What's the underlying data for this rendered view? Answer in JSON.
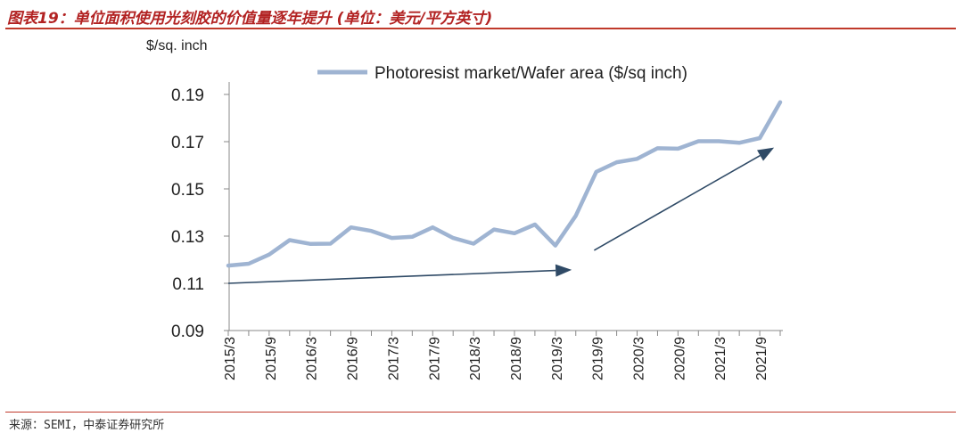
{
  "figure": {
    "title": "图表19：单位面积使用光刻胶的价值量逐年提升 (单位：美元/平方英寸)",
    "source": "来源：SEMI，中泰证券研究所",
    "line_color": "#9fb4d2",
    "arrow_color": "#2f4a66",
    "title_color": "#b22222"
  },
  "chart_data": {
    "type": "line",
    "ylabel": "$/sq. inch",
    "ylim": [
      0.09,
      0.19
    ],
    "yticks": [
      0.09,
      0.11,
      0.13,
      0.15,
      0.17,
      0.19
    ],
    "ytick_labels": [
      "0.09",
      "0.11",
      "0.13",
      "0.15",
      "0.17",
      "0.19"
    ],
    "xtick_labels": [
      "2015/3",
      "2015/9",
      "2016/3",
      "2016/9",
      "2017/3",
      "2017/9",
      "2018/3",
      "2018/9",
      "2019/3",
      "2019/9",
      "2020/3",
      "2020/9",
      "2021/3",
      "2021/9"
    ],
    "legend": "top-center",
    "grid": false,
    "series": [
      {
        "name": "Photoresist market/Wafer area ($/sq inch)",
        "values": [
          0.1175,
          0.1183,
          0.1222,
          0.1283,
          0.1267,
          0.1268,
          0.1337,
          0.1322,
          0.1292,
          0.1297,
          0.1337,
          0.1292,
          0.1268,
          0.1328,
          0.1312,
          0.1349,
          0.126,
          0.1386,
          0.1572,
          0.1613,
          0.1627,
          0.1672,
          0.167,
          0.1702,
          0.1702,
          0.1695,
          0.1715,
          0.1867
        ]
      }
    ],
    "trend_arrows": [
      {
        "from": [
          0.0,
          0.11
        ],
        "to": [
          16.8,
          0.1157
        ]
      },
      {
        "from": [
          17.9,
          0.124
        ],
        "to": [
          26.7,
          0.1675
        ]
      }
    ]
  }
}
